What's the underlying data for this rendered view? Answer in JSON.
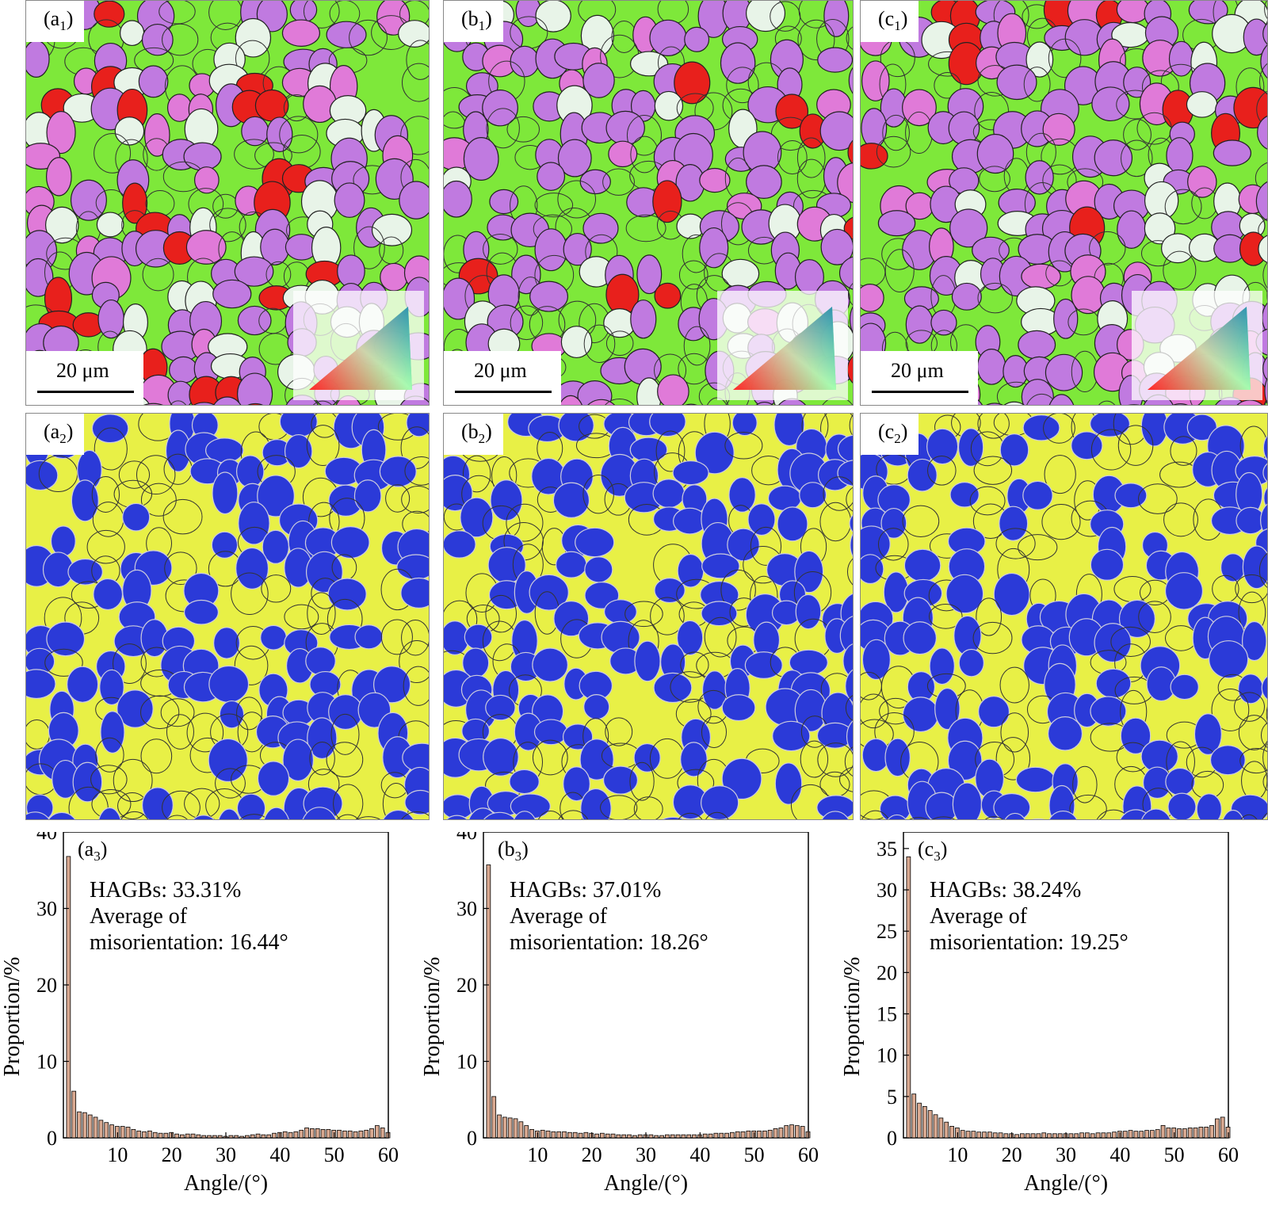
{
  "figure": {
    "maps_row1": [
      {
        "label_main": "(a",
        "label_sub": "1",
        "label_end": ")",
        "scale": "20 μm"
      },
      {
        "label_main": "(b",
        "label_sub": "1",
        "label_end": ")",
        "scale": "20 μm"
      },
      {
        "label_main": "(c",
        "label_sub": "1",
        "label_end": ")",
        "scale": "20 μm"
      }
    ],
    "maps_row2": [
      {
        "label_main": "(a",
        "label_sub": "2",
        "label_end": ")"
      },
      {
        "label_main": "(b",
        "label_sub": "2",
        "label_end": ")"
      },
      {
        "label_main": "(c",
        "label_sub": "2",
        "label_end": ")"
      }
    ],
    "colors": {
      "ipf_green": "#7ee83a",
      "ipf_purple": "#c07ae0",
      "ipf_pink": "#e07ad8",
      "ipf_red": "#e8201c",
      "ipf_white": "#e8f4e8",
      "phase_yellow": "#e8f046",
      "phase_blue": "#2b3ad8",
      "bar_fill": "#d8a890"
    }
  },
  "chart_data": [
    {
      "type": "bar",
      "panel": "(a3)",
      "label_main": "(a",
      "label_sub": "3",
      "label_end": ")",
      "xlabel": "Angle/(°)",
      "ylabel": "Proportion/%",
      "xlim": [
        0,
        60
      ],
      "ylim": [
        0,
        40
      ],
      "xticks": [
        "10",
        "20",
        "30",
        "40",
        "50",
        "60"
      ],
      "yticks": [
        "0",
        "10",
        "20",
        "30",
        "40"
      ],
      "annotation_lines": [
        "HAGBs: 33.31%",
        "Average of",
        "misorientation: 16.44°"
      ],
      "x": [
        1,
        2,
        3,
        4,
        5,
        6,
        7,
        8,
        9,
        10,
        11,
        12,
        13,
        14,
        15,
        16,
        17,
        18,
        19,
        20,
        21,
        22,
        23,
        24,
        25,
        26,
        27,
        28,
        29,
        30,
        31,
        32,
        33,
        34,
        35,
        36,
        37,
        38,
        39,
        40,
        41,
        42,
        43,
        44,
        45,
        46,
        47,
        48,
        49,
        50,
        51,
        52,
        53,
        54,
        55,
        56,
        57,
        58,
        59,
        60
      ],
      "values": [
        36.8,
        6.1,
        3.4,
        3.3,
        3.0,
        2.7,
        2.3,
        2.0,
        1.7,
        1.5,
        1.5,
        1.4,
        1.1,
        0.9,
        0.8,
        0.9,
        0.7,
        0.6,
        0.6,
        0.7,
        0.5,
        0.4,
        0.5,
        0.5,
        0.4,
        0.3,
        0.3,
        0.3,
        0.3,
        0.2,
        0.3,
        0.3,
        0.2,
        0.3,
        0.4,
        0.5,
        0.4,
        0.4,
        0.6,
        0.7,
        0.8,
        0.7,
        0.8,
        1.0,
        1.3,
        1.2,
        1.2,
        1.1,
        1.1,
        1.0,
        1.0,
        0.9,
        0.9,
        0.8,
        0.9,
        1.0,
        1.2,
        1.6,
        1.3,
        0.7
      ]
    },
    {
      "type": "bar",
      "panel": "(b3)",
      "label_main": "(b",
      "label_sub": "3",
      "label_end": ")",
      "xlabel": "Angle/(°)",
      "ylabel": "Proportion/%",
      "xlim": [
        0,
        60
      ],
      "ylim": [
        0,
        40
      ],
      "xticks": [
        "10",
        "20",
        "30",
        "40",
        "50",
        "60"
      ],
      "yticks": [
        "0",
        "10",
        "20",
        "30",
        "40"
      ],
      "annotation_lines": [
        "HAGBs: 37.01%",
        "Average of",
        "misorientation: 18.26°"
      ],
      "x": [
        1,
        2,
        3,
        4,
        5,
        6,
        7,
        8,
        9,
        10,
        11,
        12,
        13,
        14,
        15,
        16,
        17,
        18,
        19,
        20,
        21,
        22,
        23,
        24,
        25,
        26,
        27,
        28,
        29,
        30,
        31,
        32,
        33,
        34,
        35,
        36,
        37,
        38,
        39,
        40,
        41,
        42,
        43,
        44,
        45,
        46,
        47,
        48,
        49,
        50,
        51,
        52,
        53,
        54,
        55,
        56,
        57,
        58,
        59,
        60
      ],
      "values": [
        35.7,
        5.4,
        3.0,
        2.7,
        2.6,
        2.5,
        2.1,
        1.6,
        1.1,
        0.9,
        1.0,
        0.9,
        0.8,
        0.8,
        0.8,
        0.7,
        0.7,
        0.6,
        0.7,
        0.6,
        0.5,
        0.6,
        0.5,
        0.5,
        0.4,
        0.4,
        0.4,
        0.3,
        0.4,
        0.4,
        0.4,
        0.3,
        0.3,
        0.4,
        0.4,
        0.4,
        0.4,
        0.4,
        0.4,
        0.4,
        0.5,
        0.5,
        0.6,
        0.6,
        0.6,
        0.7,
        0.8,
        0.8,
        0.9,
        0.9,
        0.9,
        0.9,
        1.0,
        1.2,
        1.3,
        1.6,
        1.7,
        1.6,
        1.5,
        0.8
      ]
    },
    {
      "type": "bar",
      "panel": "(c3)",
      "label_main": "(c",
      "label_sub": "3",
      "label_end": ")",
      "xlabel": "Angle/(°)",
      "ylabel": "Proportion/%",
      "xlim": [
        0,
        60
      ],
      "ylim": [
        0,
        37
      ],
      "xticks": [
        "10",
        "20",
        "30",
        "40",
        "50",
        "60"
      ],
      "yticks": [
        "0",
        "5",
        "10",
        "15",
        "20",
        "25",
        "30",
        "35"
      ],
      "annotation_lines": [
        "HAGBs: 38.24%",
        "Average of",
        "misorientation: 19.25°"
      ],
      "x": [
        1,
        2,
        3,
        4,
        5,
        6,
        7,
        8,
        9,
        10,
        11,
        12,
        13,
        14,
        15,
        16,
        17,
        18,
        19,
        20,
        21,
        22,
        23,
        24,
        25,
        26,
        27,
        28,
        29,
        30,
        31,
        32,
        33,
        34,
        35,
        36,
        37,
        38,
        39,
        40,
        41,
        42,
        43,
        44,
        45,
        46,
        47,
        48,
        49,
        50,
        51,
        52,
        53,
        54,
        55,
        56,
        57,
        58,
        59,
        60
      ],
      "values": [
        34.0,
        5.3,
        4.2,
        3.8,
        3.3,
        2.8,
        2.4,
        1.9,
        1.4,
        1.2,
        0.9,
        0.8,
        0.8,
        0.7,
        0.7,
        0.7,
        0.6,
        0.6,
        0.5,
        0.5,
        0.4,
        0.5,
        0.5,
        0.5,
        0.5,
        0.6,
        0.5,
        0.5,
        0.5,
        0.5,
        0.5,
        0.5,
        0.6,
        0.6,
        0.5,
        0.6,
        0.6,
        0.6,
        0.7,
        0.8,
        0.8,
        0.9,
        0.8,
        0.8,
        0.9,
        0.9,
        1.0,
        1.5,
        1.2,
        1.2,
        1.1,
        1.1,
        1.2,
        1.2,
        1.3,
        1.3,
        1.5,
        2.3,
        2.5,
        1.3
      ]
    }
  ]
}
